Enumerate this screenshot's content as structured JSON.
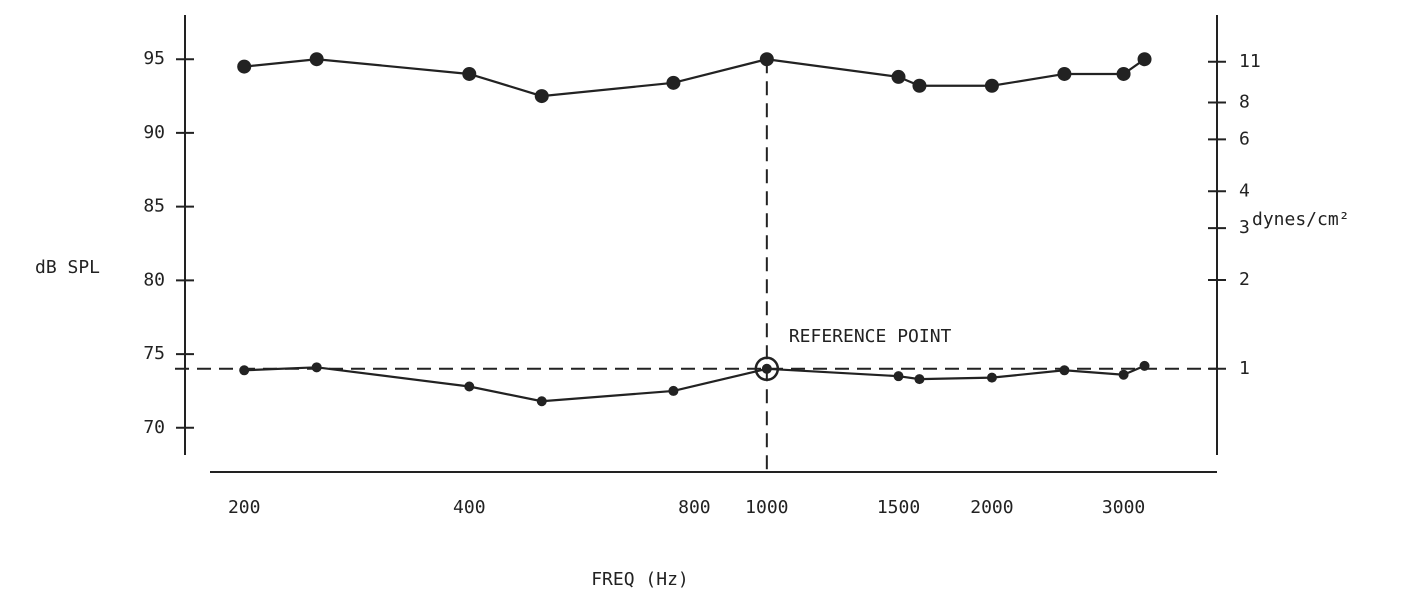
{
  "chart_data": {
    "type": "line",
    "x_label": "FREQ (Hz)",
    "y_label": "dB SPL",
    "y2_label": "dynes/cm²",
    "xscale": "log",
    "y2scale": "log",
    "x": [
      200,
      250,
      400,
      500,
      750,
      1000,
      1500,
      1600,
      2000,
      2500,
      3000,
      3200
    ],
    "series": [
      {
        "color": "#222222",
        "values": [
          94.5,
          95,
          94.0,
          92.5,
          93.4,
          95,
          93.8,
          93.2,
          93.2,
          94.0,
          94.0,
          95
        ]
      },
      {
        "color": "#222222",
        "values": [
          73.9,
          74.1,
          72.8,
          71.8,
          72.5,
          74,
          73.5,
          73.3,
          73.4,
          73.9,
          73.6,
          74.2
        ]
      }
    ],
    "xlim": [
      180,
      4000
    ],
    "xticks": [
      200,
      400,
      800,
      1000,
      1500,
      2000,
      3000
    ],
    "ylim": [
      67,
      98
    ],
    "yticks": [
      70,
      75,
      80,
      85,
      90,
      95
    ],
    "y2lim": [
      0.4467,
      15.85
    ],
    "y2ticks": [
      1,
      2,
      3,
      4,
      6,
      8,
      11
    ],
    "reference": {
      "x": 1000,
      "y": 74,
      "label": "REFERENCE POINT"
    },
    "grid": false
  }
}
